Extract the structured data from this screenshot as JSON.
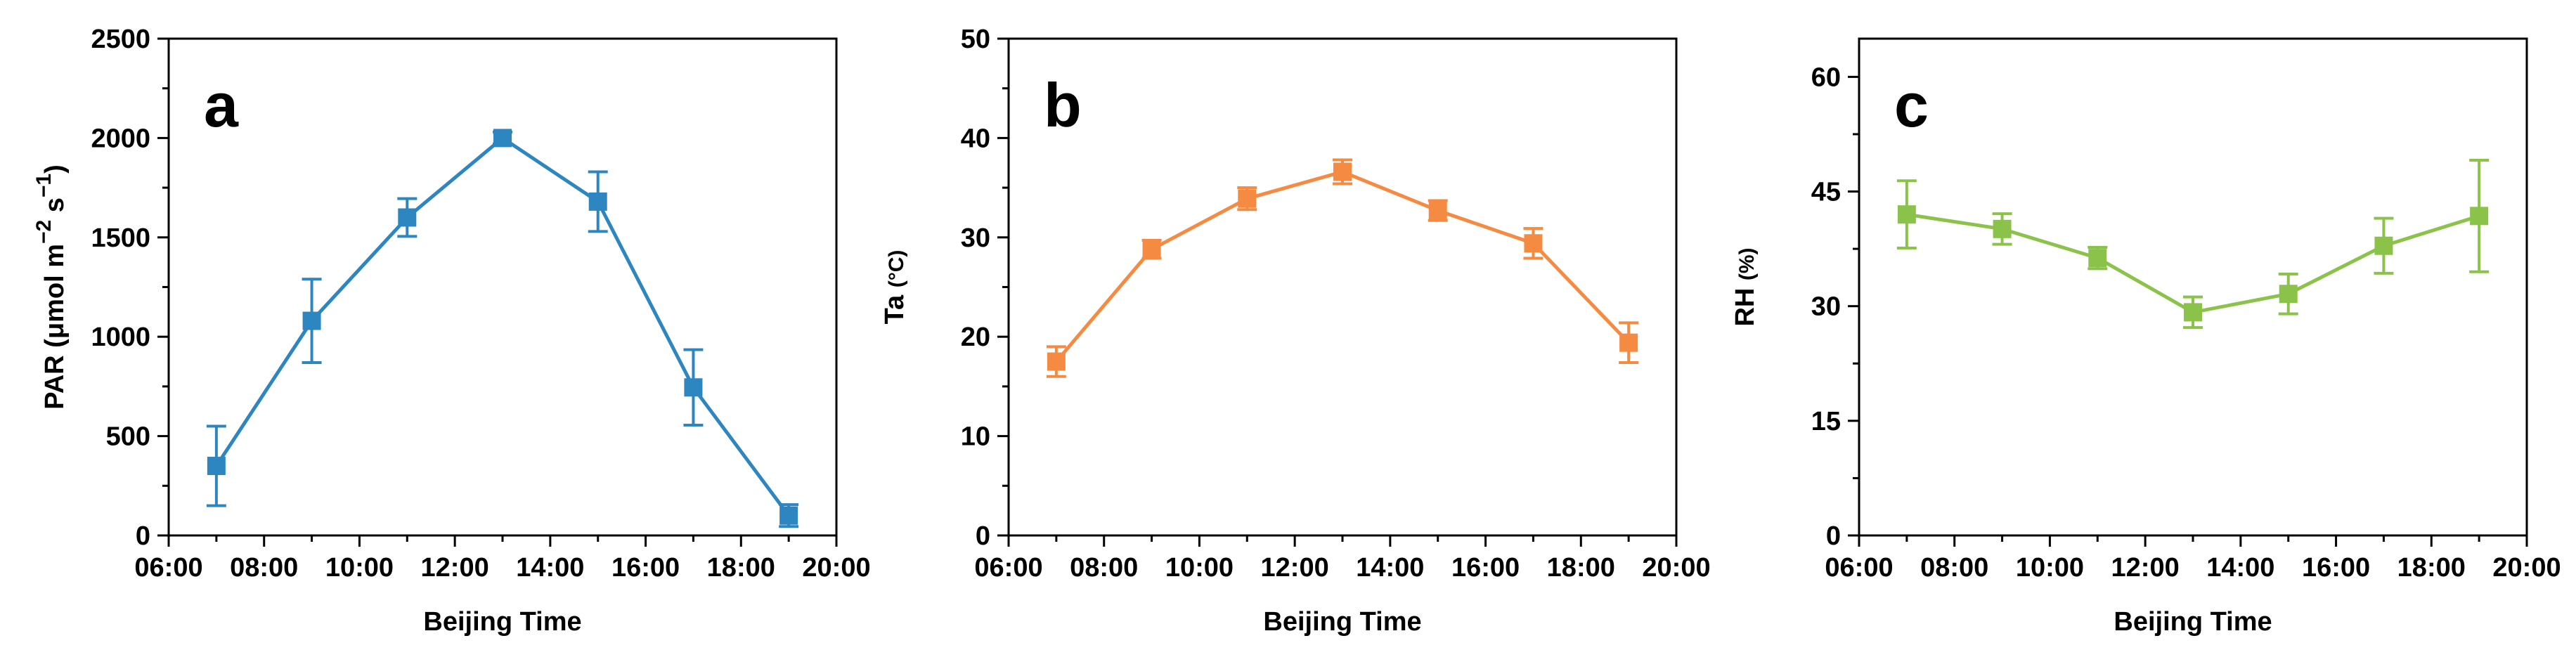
{
  "chart_data": [
    {
      "type": "line",
      "panel_label": "a",
      "color": "#2e86c1",
      "xlabel": "Beijing Time",
      "ylabel": "PAR (μmol m−2 s−1)",
      "ylabel_parts": {
        "main": "PAR (",
        "mu": "μ",
        "unit": "mol m",
        "sup1": "−2",
        "mid": " s",
        "sup2": "−1",
        "end": ")"
      },
      "x_ticks": [
        "06:00",
        "08:00",
        "10:00",
        "12:00",
        "14:00",
        "16:00",
        "18:00",
        "20:00"
      ],
      "xlim": [
        "06:00",
        "20:00"
      ],
      "y_ticks": [
        0,
        500,
        1000,
        1500,
        2000,
        2500
      ],
      "ylim": [
        0,
        2500
      ],
      "grid": false,
      "series": [
        {
          "x": [
            "07:00",
            "09:00",
            "11:00",
            "13:00",
            "15:00",
            "17:00",
            "19:00"
          ],
          "y": [
            350,
            1080,
            1600,
            2000,
            1680,
            745,
            100
          ],
          "error": [
            200,
            210,
            95,
            30,
            150,
            190,
            55
          ]
        }
      ]
    },
    {
      "type": "line",
      "panel_label": "b",
      "color": "#f58a42",
      "xlabel": "Beijing Time",
      "ylabel": "Ta (°C)",
      "ylabel_parts": {
        "main": "Ta ",
        "unit": "(°C)"
      },
      "x_ticks": [
        "06:00",
        "08:00",
        "10:00",
        "12:00",
        "14:00",
        "16:00",
        "18:00",
        "20:00"
      ],
      "xlim": [
        "06:00",
        "20:00"
      ],
      "y_ticks": [
        0,
        10,
        20,
        30,
        40,
        50
      ],
      "ylim": [
        0,
        50
      ],
      "grid": false,
      "series": [
        {
          "x": [
            "07:00",
            "09:00",
            "11:00",
            "13:00",
            "15:00",
            "17:00",
            "19:00"
          ],
          "y": [
            17.5,
            28.8,
            33.9,
            36.6,
            32.7,
            29.4,
            19.4
          ],
          "error": [
            1.5,
            0.9,
            1.1,
            1.2,
            1.0,
            1.5,
            2.0
          ]
        }
      ]
    },
    {
      "type": "line",
      "panel_label": "c",
      "color": "#8bc34a",
      "xlabel": "Beijing Time",
      "ylabel": "RH (%)",
      "ylabel_parts": {
        "main": "RH ",
        "unit": "(%)"
      },
      "x_ticks": [
        "06:00",
        "08:00",
        "10:00",
        "12:00",
        "14:00",
        "16:00",
        "18:00",
        "20:00"
      ],
      "xlim": [
        "06:00",
        "20:00"
      ],
      "y_ticks": [
        0,
        15,
        30,
        45,
        60
      ],
      "ylim": [
        0,
        65
      ],
      "grid": false,
      "series": [
        {
          "x": [
            "07:00",
            "09:00",
            "11:00",
            "13:00",
            "15:00",
            "17:00",
            "19:00"
          ],
          "y": [
            42.0,
            40.1,
            36.3,
            29.2,
            31.6,
            37.9,
            41.8
          ],
          "error": [
            4.4,
            2.0,
            1.4,
            2.0,
            2.6,
            3.6,
            7.3
          ]
        }
      ]
    }
  ]
}
